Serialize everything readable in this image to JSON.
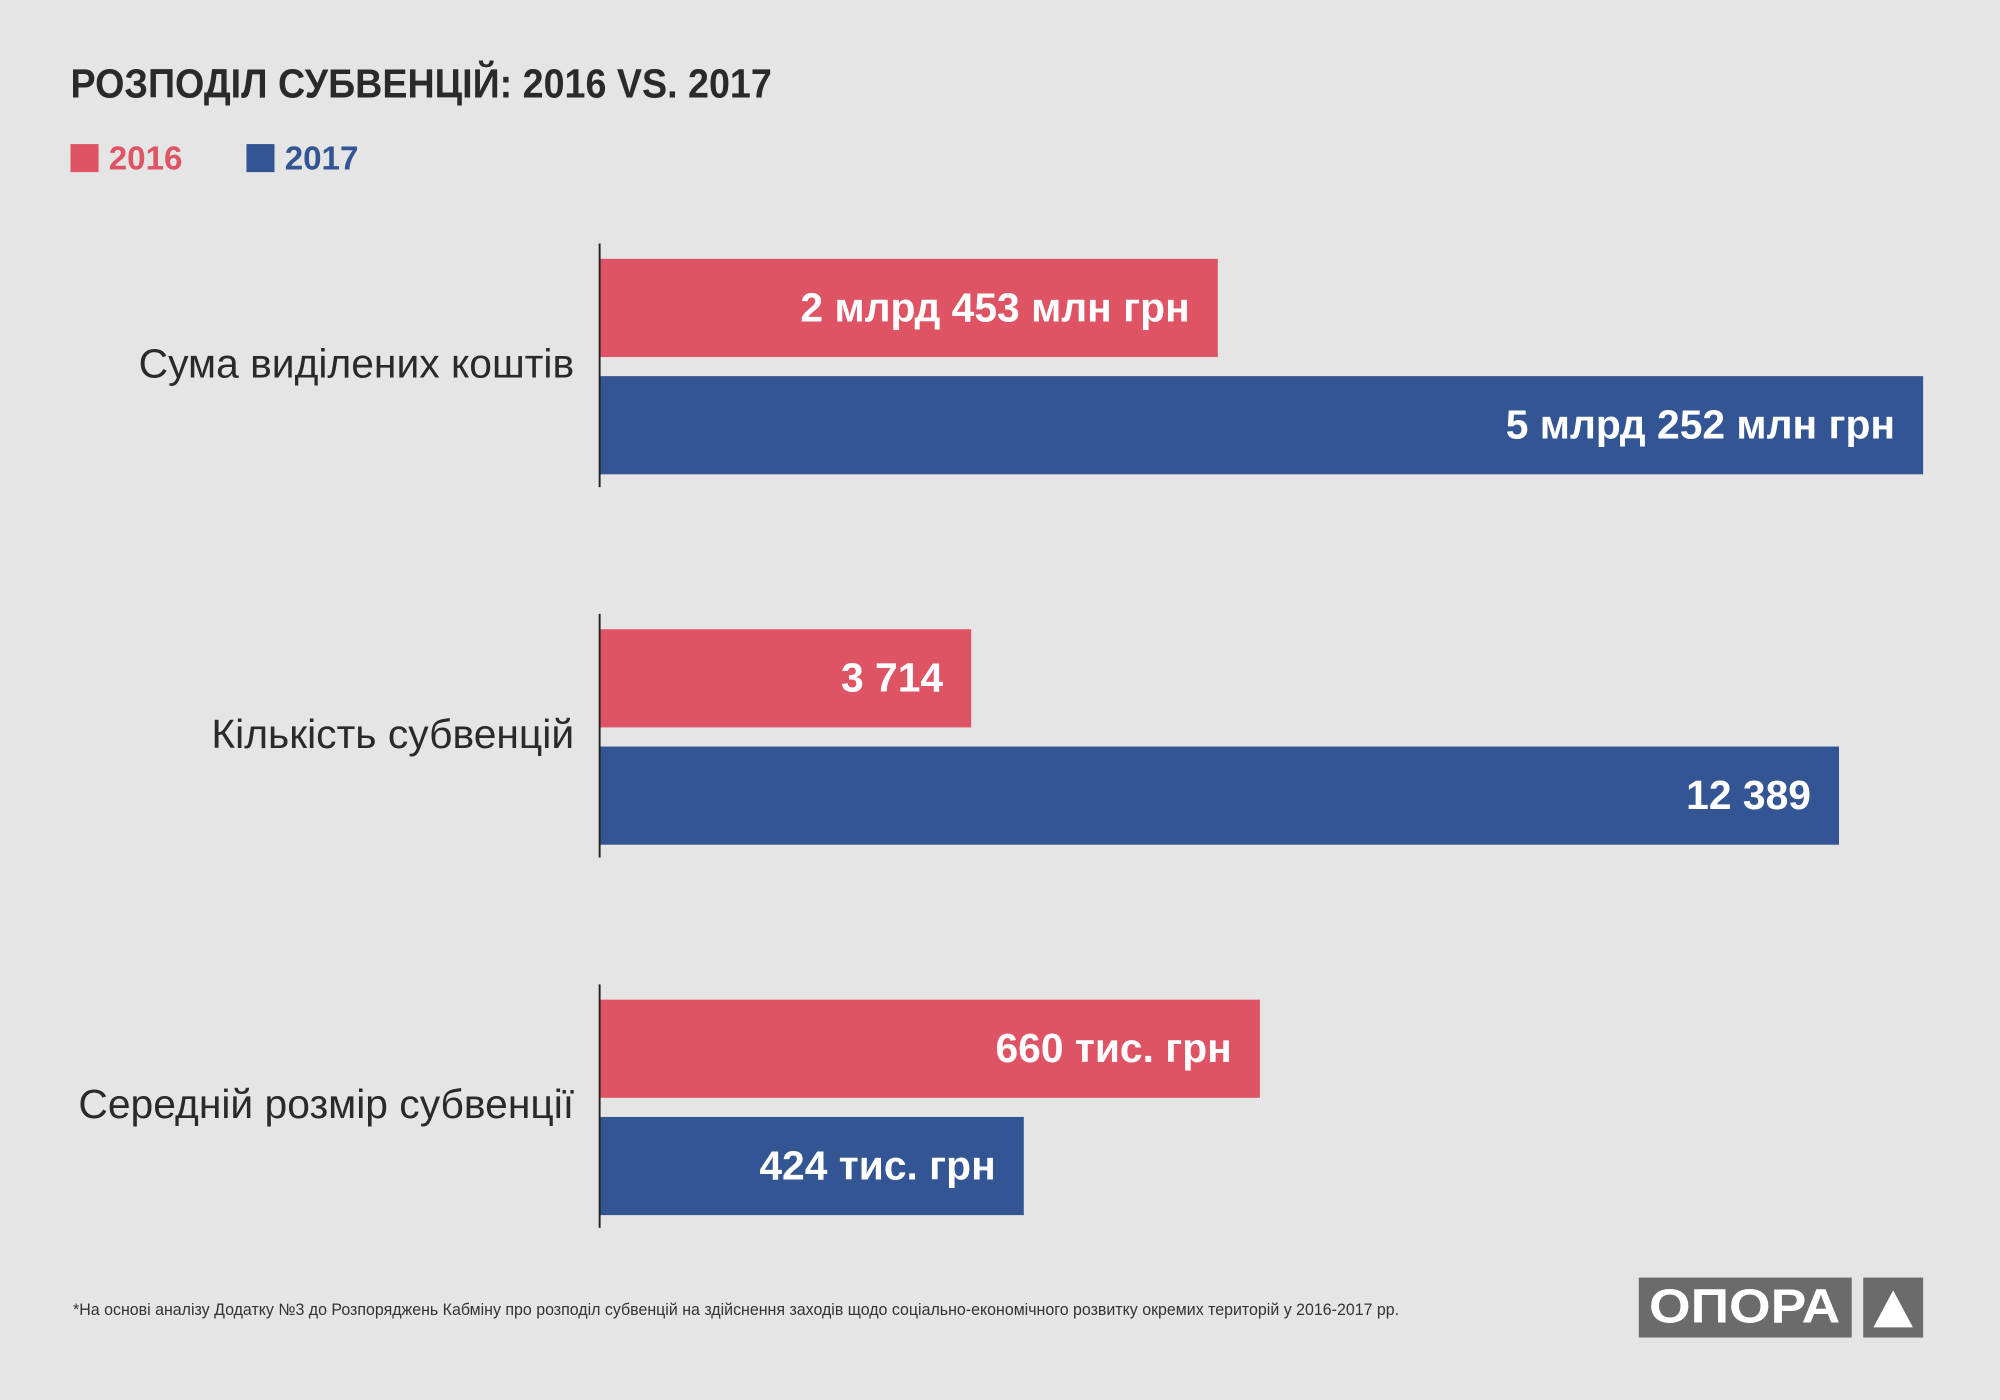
{
  "chart_data": {
    "type": "bar",
    "orientation": "horizontal",
    "title": "РОЗПОДІЛ СУБВЕНЦІЙ: 2016 VS. 2017",
    "categories": [
      "Сума виділених коштів",
      "Кількість субвенцій",
      "Середній розмір субвенції"
    ],
    "series": [
      {
        "name": "2016",
        "color": "#de5465",
        "values": [
          2453,
          3714,
          660
        ],
        "value_labels": [
          "2 млрд 453 млн грн",
          "3 714",
          "660 тис. грн"
        ]
      },
      {
        "name": "2017",
        "color": "#345593",
        "values": [
          5252,
          12389,
          424
        ],
        "value_labels": [
          "5 млрд 252 млн грн",
          "12 389",
          "424 тис. грн"
        ]
      }
    ],
    "xlims": [
      [
        0,
        5252
      ],
      [
        0,
        13230
      ],
      [
        0,
        1323
      ]
    ]
  },
  "footnote": "*На основі аналізу Додатку №3 до Розпоряджень Кабміну про розподіл субвенцій на здійснення заходів щодо соціально-економічного розвитку окремих територій у 2016-2017 рр.",
  "logo": "ОПОРА"
}
